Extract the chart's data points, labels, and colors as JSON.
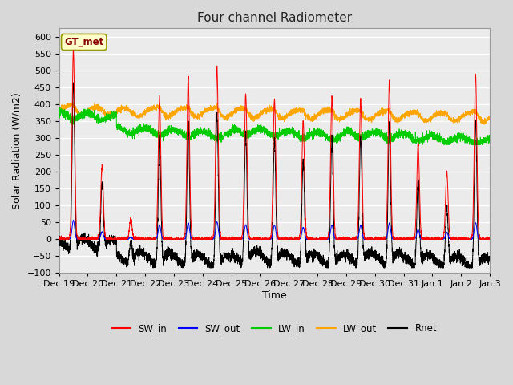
{
  "title": "Four channel Radiometer",
  "xlabel": "Time",
  "ylabel": "Solar Radiation (W/m2)",
  "ylim": [
    -100,
    625
  ],
  "yticks": [
    -100,
    -50,
    0,
    50,
    100,
    150,
    200,
    250,
    300,
    350,
    400,
    450,
    500,
    550,
    600
  ],
  "fig_bg_color": "#d8d8d8",
  "plot_bg_color": "#ebebeb",
  "grid_color": "#ffffff",
  "annotation_text": "GT_met",
  "annotation_box_color": "#ffffcc",
  "annotation_border_color": "#999900",
  "colors": {
    "SW_in": "#ff0000",
    "SW_out": "#0000ff",
    "LW_in": "#00cc00",
    "LW_out": "#ffa500",
    "Rnet": "#000000"
  },
  "x_labels": [
    "Dec 19",
    "Dec 20",
    "Dec 21",
    "Dec 22",
    "Dec 23",
    "Dec 24",
    "Dec 25",
    "Dec 26",
    "Dec 27",
    "Dec 28",
    "Dec 29",
    "Dec 30",
    "Dec 31",
    "Jan 1",
    "Jan 2",
    "Jan 3"
  ],
  "title_fontsize": 11,
  "axis_fontsize": 9,
  "tick_fontsize": 8,
  "linewidth": 0.7
}
